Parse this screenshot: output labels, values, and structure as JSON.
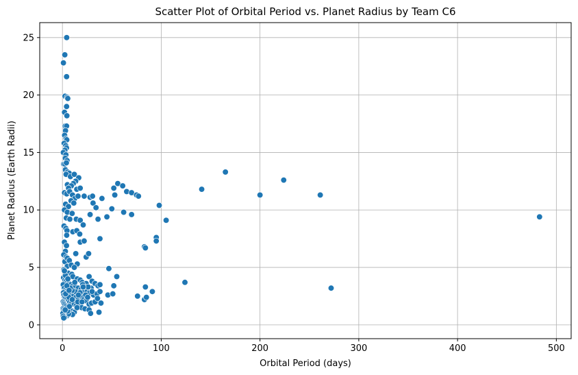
{
  "chart_data": {
    "type": "scatter",
    "title": "Scatter Plot of Orbital Period vs. Planet Radius by Team C6",
    "xlabel": "Orbital Period (days)",
    "ylabel": "Planet Radius (Earth Radii)",
    "xlim": [
      -23,
      515
    ],
    "ylim": [
      -1.2,
      26.3
    ],
    "xticks": [
      0,
      100,
      200,
      300,
      400,
      500
    ],
    "yticks": [
      0,
      5,
      10,
      15,
      20,
      25
    ],
    "grid": true,
    "marker_color": "#1f77b4",
    "points": [
      [
        4.3,
        25.0
      ],
      [
        2.4,
        23.5
      ],
      [
        1.0,
        22.8
      ],
      [
        4.2,
        21.6
      ],
      [
        2.6,
        19.9
      ],
      [
        4.8,
        19.8
      ],
      [
        5.4,
        19.7
      ],
      [
        4.2,
        19.0
      ],
      [
        2.1,
        18.5
      ],
      [
        4.5,
        18.2
      ],
      [
        2.8,
        17.3
      ],
      [
        4.2,
        17.3
      ],
      [
        3.1,
        16.9
      ],
      [
        2.2,
        16.5
      ],
      [
        3.6,
        16.2
      ],
      [
        4.4,
        16.1
      ],
      [
        1.7,
        15.8
      ],
      [
        3.3,
        15.6
      ],
      [
        4.1,
        15.4
      ],
      [
        2.5,
        15.2
      ],
      [
        0.9,
        15.0
      ],
      [
        3.5,
        14.8
      ],
      [
        2.9,
        14.5
      ],
      [
        4.7,
        14.3
      ],
      [
        1.2,
        14.0
      ],
      [
        2.3,
        14.0
      ],
      [
        4.0,
        14.1
      ],
      [
        3.0,
        13.5
      ],
      [
        5.2,
        13.3
      ],
      [
        6.8,
        13.2
      ],
      [
        3.7,
        13.1
      ],
      [
        8.1,
        12.9
      ],
      [
        12.0,
        13.1
      ],
      [
        16.5,
        12.8
      ],
      [
        13.4,
        12.5
      ],
      [
        11.0,
        12.3
      ],
      [
        5.0,
        12.2
      ],
      [
        9.0,
        12.1
      ],
      [
        6.2,
        11.9
      ],
      [
        14.5,
        11.8
      ],
      [
        18.0,
        11.9
      ],
      [
        2.1,
        11.5
      ],
      [
        4.3,
        11.4
      ],
      [
        7.3,
        11.6
      ],
      [
        10.2,
        11.3
      ],
      [
        12.5,
        11.0
      ],
      [
        15.8,
        11.2
      ],
      [
        22.0,
        11.2
      ],
      [
        28.0,
        11.1
      ],
      [
        30.5,
        11.2
      ],
      [
        40.0,
        11.0
      ],
      [
        8.7,
        10.8
      ],
      [
        3.2,
        10.5
      ],
      [
        6.1,
        10.3
      ],
      [
        11.5,
        10.6
      ],
      [
        31.0,
        10.6
      ],
      [
        34.0,
        10.2
      ],
      [
        50.0,
        10.1
      ],
      [
        2.0,
        10.0
      ],
      [
        4.9,
        9.8
      ],
      [
        9.8,
        9.7
      ],
      [
        3.9,
        9.3
      ],
      [
        7.5,
        9.2
      ],
      [
        14.0,
        9.2
      ],
      [
        18.0,
        9.1
      ],
      [
        28.0,
        9.6
      ],
      [
        36.0,
        9.2
      ],
      [
        45.0,
        9.4
      ],
      [
        21.0,
        8.7
      ],
      [
        1.6,
        8.6
      ],
      [
        3.5,
        8.4
      ],
      [
        4.6,
        8.2
      ],
      [
        10.5,
        8.1
      ],
      [
        14.5,
        8.2
      ],
      [
        17.5,
        7.9
      ],
      [
        4.3,
        7.8
      ],
      [
        2.0,
        7.2
      ],
      [
        18.0,
        7.2
      ],
      [
        22.0,
        7.3
      ],
      [
        38.0,
        7.5
      ],
      [
        52.0,
        11.9
      ],
      [
        56.0,
        12.3
      ],
      [
        61.0,
        12.1
      ],
      [
        65.0,
        11.6
      ],
      [
        70.0,
        11.5
      ],
      [
        75.0,
        11.3
      ],
      [
        77.0,
        11.2
      ],
      [
        53.0,
        11.3
      ],
      [
        62.0,
        9.8
      ],
      [
        70.0,
        9.6
      ],
      [
        98.0,
        10.4
      ],
      [
        105.0,
        9.1
      ],
      [
        95.0,
        7.6
      ],
      [
        95.0,
        7.3
      ],
      [
        83.0,
        6.8
      ],
      [
        84.0,
        6.7
      ],
      [
        141.0,
        11.8
      ],
      [
        165.0,
        13.3
      ],
      [
        200.0,
        11.3
      ],
      [
        224.0,
        12.6
      ],
      [
        261.0,
        11.3
      ],
      [
        483.0,
        9.4
      ],
      [
        4.1,
        6.9
      ],
      [
        3.0,
        6.4
      ],
      [
        1.3,
        6.1
      ],
      [
        3.8,
        5.9
      ],
      [
        2.4,
        5.5
      ],
      [
        5.0,
        5.8
      ],
      [
        7.0,
        5.6
      ],
      [
        13.5,
        6.2
      ],
      [
        24.0,
        5.9
      ],
      [
        26.5,
        6.2
      ],
      [
        15.0,
        5.3
      ],
      [
        4.9,
        5.1
      ],
      [
        9.0,
        5.2
      ],
      [
        12.0,
        5.0
      ],
      [
        1.4,
        4.8
      ],
      [
        3.2,
        4.6
      ],
      [
        6.0,
        4.5
      ],
      [
        9.5,
        4.4
      ],
      [
        10.5,
        4.2
      ],
      [
        15.0,
        4.0
      ],
      [
        18.0,
        3.9
      ],
      [
        20.0,
        3.7
      ],
      [
        24.0,
        3.6
      ],
      [
        27.0,
        4.2
      ],
      [
        30.0,
        3.8
      ],
      [
        33.0,
        3.6
      ],
      [
        36.0,
        3.4
      ],
      [
        38.0,
        3.5
      ],
      [
        47.0,
        4.9
      ],
      [
        55.0,
        4.2
      ],
      [
        52.0,
        3.4
      ],
      [
        1.1,
        4.1
      ],
      [
        2.5,
        3.9
      ],
      [
        3.7,
        3.8
      ],
      [
        5.1,
        3.7
      ],
      [
        6.8,
        3.6
      ],
      [
        8.5,
        3.5
      ],
      [
        11.0,
        3.4
      ],
      [
        13.2,
        3.3
      ],
      [
        16.0,
        3.2
      ],
      [
        19.0,
        3.1
      ],
      [
        22.0,
        3.0
      ],
      [
        25.0,
        2.9
      ],
      [
        27.5,
        2.8
      ],
      [
        29.0,
        3.2
      ],
      [
        31.5,
        2.6
      ],
      [
        35.0,
        2.7
      ],
      [
        38.0,
        2.9
      ],
      [
        46.0,
        2.6
      ],
      [
        51.0,
        2.7
      ],
      [
        76.0,
        2.5
      ],
      [
        83.0,
        2.2
      ],
      [
        85.0,
        2.4
      ],
      [
        84.0,
        3.3
      ],
      [
        91.0,
        2.9
      ],
      [
        124.0,
        3.7
      ],
      [
        272.0,
        3.2
      ],
      [
        0.8,
        3.5
      ],
      [
        1.9,
        3.2
      ],
      [
        2.9,
        3.0
      ],
      [
        4.0,
        2.9
      ],
      [
        5.5,
        2.8
      ],
      [
        7.2,
        2.7
      ],
      [
        9.0,
        2.6
      ],
      [
        11.2,
        2.5
      ],
      [
        13.8,
        2.4
      ],
      [
        16.5,
        2.3
      ],
      [
        18.9,
        2.5
      ],
      [
        21.5,
        2.2
      ],
      [
        24.0,
        2.1
      ],
      [
        27.0,
        1.8
      ],
      [
        29.5,
        1.9
      ],
      [
        33.0,
        2.0
      ],
      [
        35.5,
        2.3
      ],
      [
        39.0,
        1.9
      ],
      [
        1.0,
        2.8
      ],
      [
        1.5,
        2.6
      ],
      [
        2.2,
        2.4
      ],
      [
        3.1,
        2.3
      ],
      [
        4.2,
        2.2
      ],
      [
        5.8,
        2.1
      ],
      [
        7.5,
        2.0
      ],
      [
        9.3,
        1.9
      ],
      [
        11.8,
        1.8
      ],
      [
        14.2,
        1.7
      ],
      [
        17.0,
        1.6
      ],
      [
        19.5,
        1.5
      ],
      [
        22.8,
        1.4
      ],
      [
        27.0,
        1.3
      ],
      [
        28.5,
        1.0
      ],
      [
        37.0,
        1.1
      ],
      [
        0.6,
        2.0
      ],
      [
        1.2,
        1.9
      ],
      [
        1.8,
        1.8
      ],
      [
        2.6,
        1.7
      ],
      [
        3.5,
        1.6
      ],
      [
        4.6,
        1.5
      ],
      [
        6.0,
        1.4
      ],
      [
        7.8,
        1.3
      ],
      [
        9.7,
        1.2
      ],
      [
        12.0,
        1.1
      ],
      [
        8.5,
        1.0
      ],
      [
        10.2,
        0.9
      ],
      [
        0.5,
        1.4
      ],
      [
        0.9,
        1.3
      ],
      [
        1.4,
        1.2
      ],
      [
        2.0,
        1.1
      ],
      [
        2.7,
        1.0
      ],
      [
        3.6,
        0.9
      ],
      [
        4.8,
        0.8
      ],
      [
        6.2,
        0.95
      ],
      [
        0.7,
        0.9
      ],
      [
        1.1,
        0.8
      ],
      [
        1.6,
        0.7
      ],
      [
        2.3,
        0.65
      ],
      [
        0.4,
        1.0
      ],
      [
        0.8,
        0.75
      ],
      [
        1.3,
        0.6
      ],
      [
        5.2,
        1.2
      ],
      [
        7.0,
        1.6
      ],
      [
        13.0,
        2.9
      ],
      [
        15.5,
        2.0
      ],
      [
        17.8,
        2.8
      ],
      [
        20.5,
        3.5
      ],
      [
        23.5,
        2.6
      ],
      [
        26.0,
        3.3
      ],
      [
        12.5,
        3.7
      ],
      [
        10.0,
        3.0
      ],
      [
        8.0,
        3.2
      ],
      [
        6.5,
        2.4
      ],
      [
        3.0,
        4.3
      ],
      [
        2.0,
        4.7
      ],
      [
        5.5,
        4.0
      ],
      [
        4.4,
        3.4
      ],
      [
        3.3,
        2.7
      ],
      [
        2.8,
        1.3
      ],
      [
        6.7,
        3.0
      ],
      [
        9.9,
        2.2
      ],
      [
        14.8,
        1.5
      ],
      [
        16.2,
        2.6
      ],
      [
        19.8,
        2.0
      ],
      [
        21.0,
        3.3
      ],
      [
        25.5,
        2.4
      ],
      [
        30.0,
        2.9
      ]
    ]
  }
}
